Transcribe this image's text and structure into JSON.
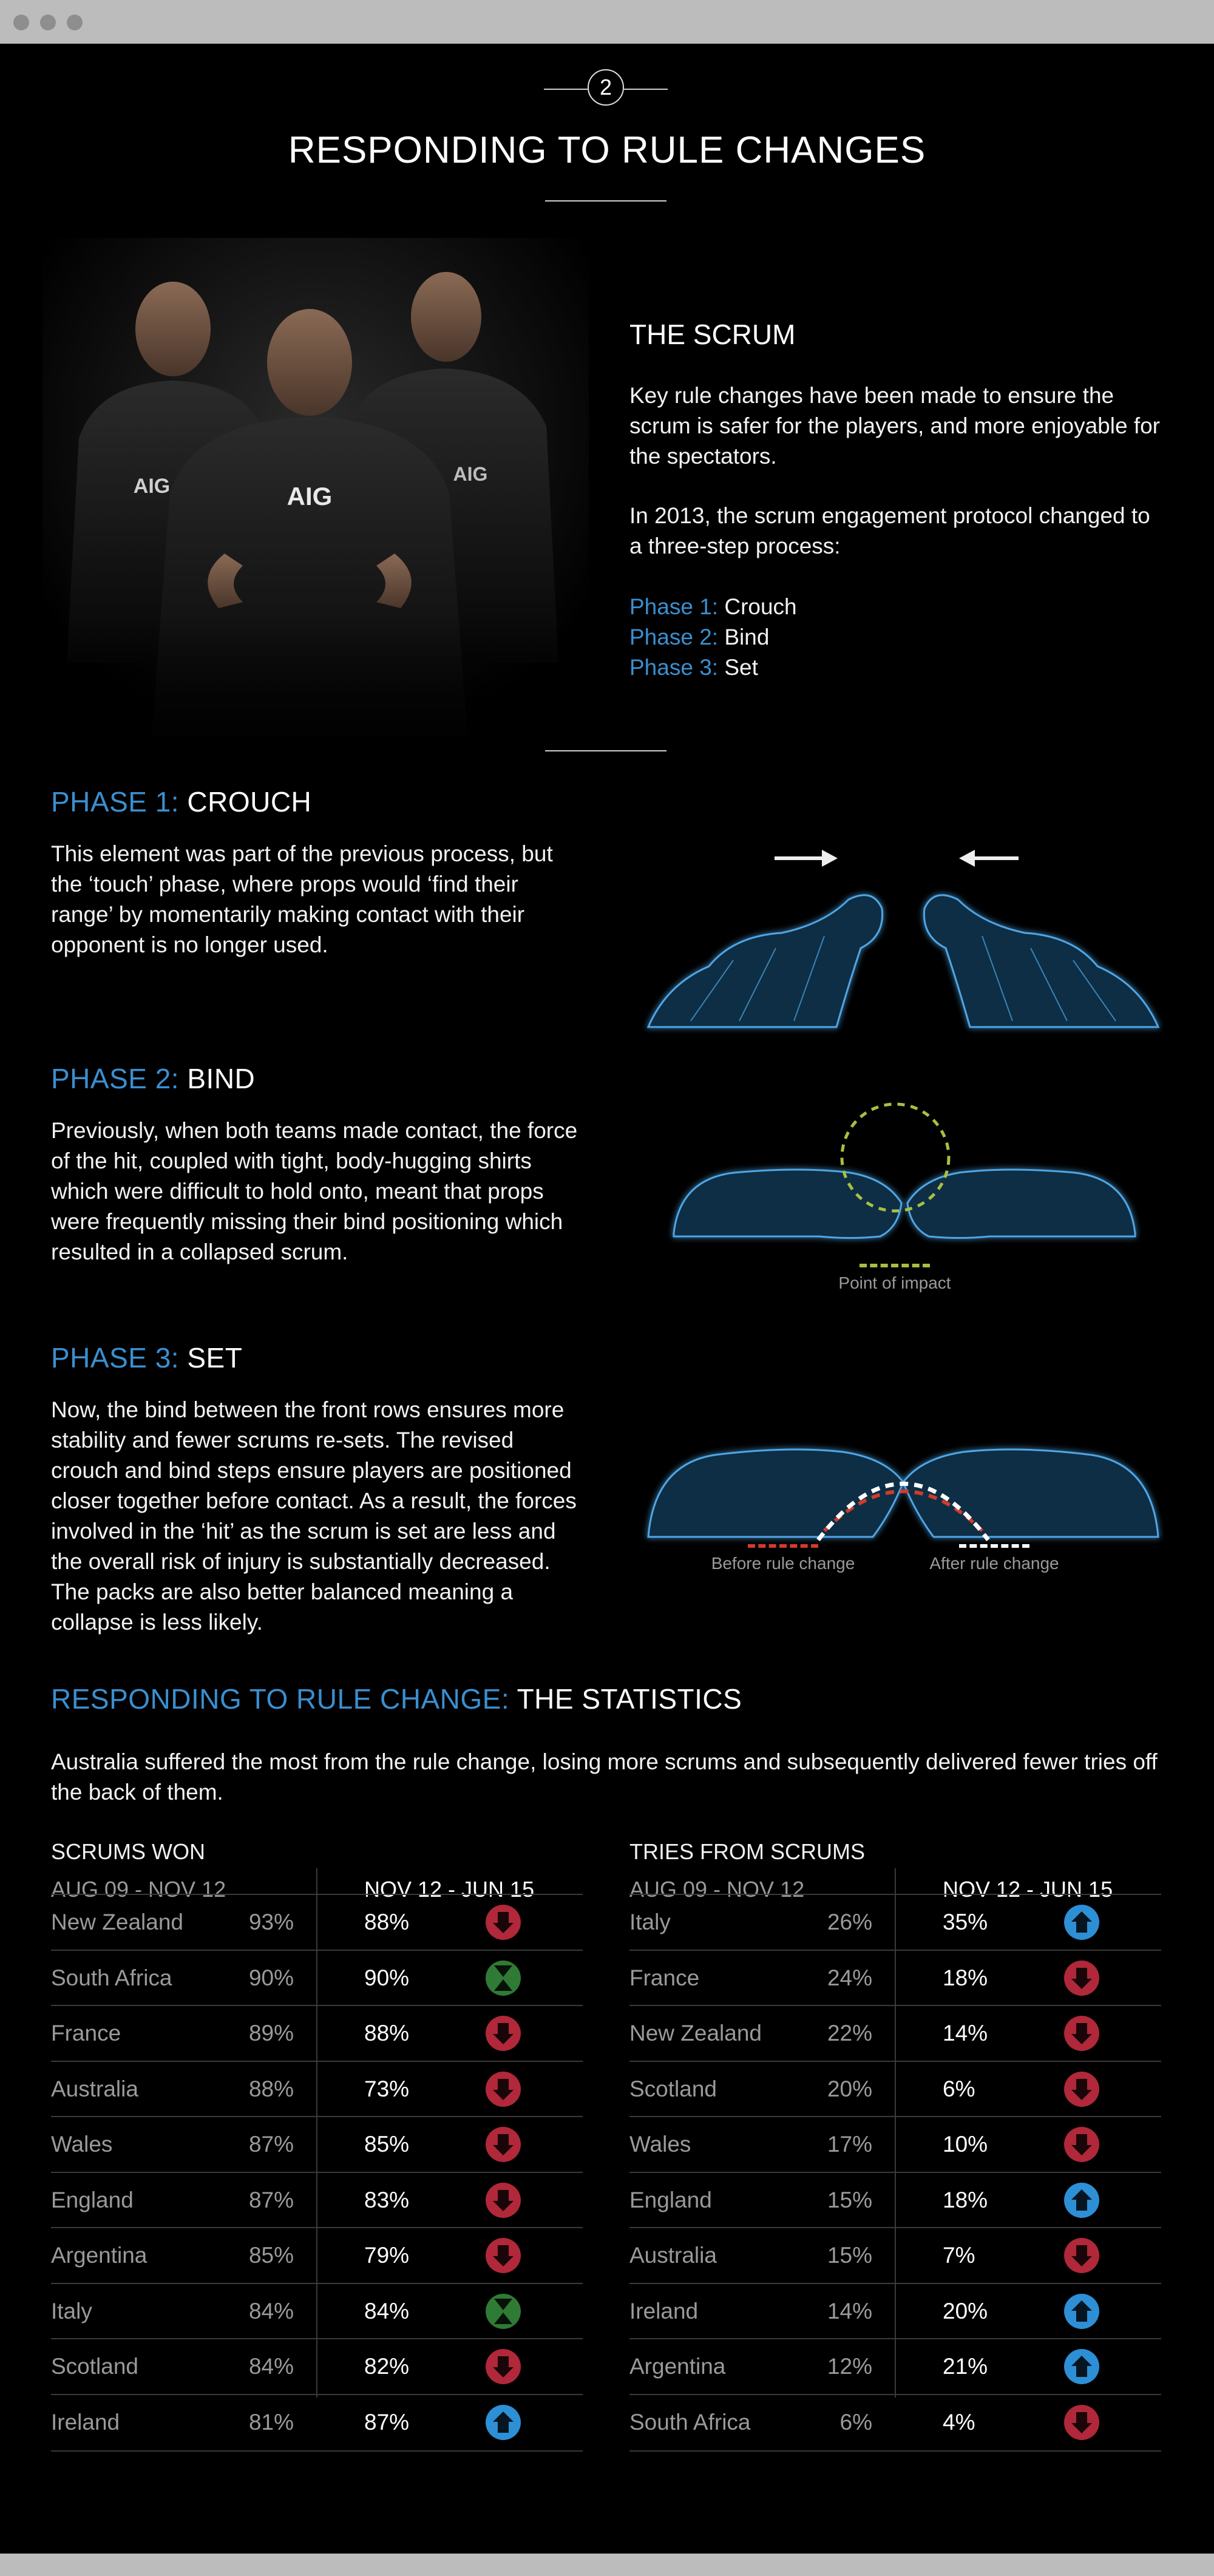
{
  "header": {
    "section_number": "2",
    "title": "RESPONDING TO RULE CHANGES"
  },
  "intro": {
    "heading": "THE SCRUM",
    "para1": "Key rule changes have been made to ensure the scrum is safer for the players, and more enjoyable for the spectators.",
    "para2": "In 2013, the scrum engagement protocol changed to a three-step process:",
    "phases": [
      {
        "label": "Phase 1:",
        "name": "Crouch"
      },
      {
        "label": "Phase 2:",
        "name": "Bind"
      },
      {
        "label": "Phase 3:",
        "name": "Set"
      }
    ],
    "jersey_sponsor": "AIG"
  },
  "phase1": {
    "label": "PHASE 1:",
    "name": "CROUCH",
    "text": "This element was part of the previous process, but the ‘touch’ phase, where props would ‘find their range’ by momentarily making contact with their opponent is no longer used."
  },
  "phase2": {
    "label": "PHASE 2:",
    "name": "BIND",
    "text": "Previously, when both teams made contact, the force of the hit, coupled with tight, body-hugging shirts which were difficult to hold onto, meant that props were frequently missing their bind positioning which resulted in a collapsed scrum.",
    "legend": "Point of impact"
  },
  "phase3": {
    "label": "PHASE 3:",
    "name": "SET",
    "text": "Now, the bind between the front rows ensures more stability and fewer scrums re-sets. The revised crouch and bind steps ensure players are positioned closer together before contact. As a result, the forces involved in the ‘hit’ as the scrum is set are less and the overall risk of injury is substantially decreased. The packs are also better balanced meaning a collapse is less likely.",
    "legend_before": "Before rule change",
    "legend_after": "After rule change"
  },
  "stats": {
    "label": "RESPONDING TO RULE CHANGE:",
    "name": "THE STATISTICS",
    "text": "Australia suffered the most from the rule change, losing more scrums and subsequently delivered fewer tries off the back of them."
  },
  "scrums_won": {
    "title": "SCRUMS WON",
    "period_old": "AUG 09 - NOV 12",
    "period_new": "NOV 12 - JUN 15",
    "rows": [
      {
        "team": "New Zealand",
        "old": "93%",
        "new": "88%",
        "trend": "down"
      },
      {
        "team": "South Africa",
        "old": "90%",
        "new": "90%",
        "trend": "same"
      },
      {
        "team": "France",
        "old": "89%",
        "new": "88%",
        "trend": "down"
      },
      {
        "team": "Australia",
        "old": "88%",
        "new": "73%",
        "trend": "down"
      },
      {
        "team": "Wales",
        "old": "87%",
        "new": "85%",
        "trend": "down"
      },
      {
        "team": "England",
        "old": "87%",
        "new": "83%",
        "trend": "down"
      },
      {
        "team": "Argentina",
        "old": "85%",
        "new": "79%",
        "trend": "down"
      },
      {
        "team": "Italy",
        "old": "84%",
        "new": "84%",
        "trend": "same"
      },
      {
        "team": "Scotland",
        "old": "84%",
        "new": "82%",
        "trend": "down"
      },
      {
        "team": "Ireland",
        "old": "81%",
        "new": "87%",
        "trend": "up"
      }
    ]
  },
  "tries_from_scrums": {
    "title": "TRIES FROM SCRUMS",
    "period_old": "AUG 09 - NOV 12",
    "period_new": "NOV 12 - JUN 15",
    "rows": [
      {
        "team": "Italy",
        "old": "26%",
        "new": "35%",
        "trend": "up"
      },
      {
        "team": "France",
        "old": "24%",
        "new": "18%",
        "trend": "down"
      },
      {
        "team": "New Zealand",
        "old": "22%",
        "new": "14%",
        "trend": "down"
      },
      {
        "team": "Scotland",
        "old": "20%",
        "new": "6%",
        "trend": "down"
      },
      {
        "team": "Wales",
        "old": "17%",
        "new": "10%",
        "trend": "down"
      },
      {
        "team": "England",
        "old": "15%",
        "new": "18%",
        "trend": "up"
      },
      {
        "team": "Australia",
        "old": "15%",
        "new": "7%",
        "trend": "down"
      },
      {
        "team": "Ireland",
        "old": "14%",
        "new": "20%",
        "trend": "up"
      },
      {
        "team": "Argentina",
        "old": "12%",
        "new": "21%",
        "trend": "up"
      },
      {
        "team": "South Africa",
        "old": "6%",
        "new": "4%",
        "trend": "down"
      }
    ]
  },
  "colors": {
    "accent": "#3a8fd0",
    "down": "#b0283a",
    "up": "#2d8fd6",
    "same": "#2f7a34",
    "impact": "#a8c040",
    "before": "#d23b2b",
    "after": "#ffffff"
  }
}
